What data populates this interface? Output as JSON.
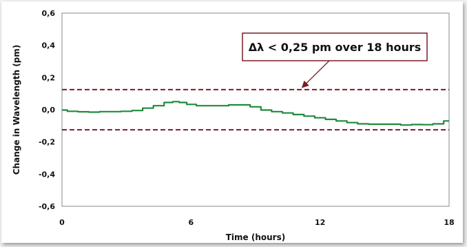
{
  "chart_data": {
    "type": "line",
    "title": "",
    "xlabel": "Time (hours)",
    "ylabel": "Change in Wavelength (pm)",
    "xlim": [
      0,
      18
    ],
    "ylim": [
      -0.6,
      0.6
    ],
    "x_ticks": [
      0,
      6,
      12,
      18
    ],
    "x_tick_labels": [
      "0",
      "6",
      "12",
      "18"
    ],
    "y_ticks": [
      0.6,
      0.4,
      0.2,
      0.0,
      -0.2,
      -0.4,
      -0.6
    ],
    "y_tick_labels": [
      "0,6",
      "0,4",
      "0,2",
      "0,0",
      "-0,2",
      "-0,4",
      "-0,6"
    ],
    "grid": false,
    "series": [
      {
        "color": "#1f8a3c",
        "x": [
          0,
          0.5,
          1,
          1.5,
          2,
          2.5,
          3,
          3.5,
          4,
          4.5,
          5,
          5.3,
          5.6,
          6,
          6.5,
          7,
          7.5,
          8,
          8.5,
          9,
          9.5,
          10,
          10.5,
          11,
          11.5,
          12,
          12.5,
          13,
          13.5,
          14,
          14.5,
          15,
          15.5,
          16,
          16.5,
          17,
          17.5,
          18
        ],
        "y": [
          -0.002,
          -0.01,
          -0.013,
          -0.015,
          -0.012,
          -0.012,
          -0.01,
          -0.005,
          0.01,
          0.025,
          0.045,
          0.05,
          0.045,
          0.033,
          0.025,
          0.025,
          0.025,
          0.03,
          0.03,
          0.018,
          -0.002,
          -0.012,
          -0.02,
          -0.03,
          -0.04,
          -0.05,
          -0.06,
          -0.07,
          -0.08,
          -0.088,
          -0.09,
          -0.09,
          -0.09,
          -0.095,
          -0.092,
          -0.093,
          -0.088,
          -0.07
        ]
      }
    ],
    "reference_lines": [
      {
        "axis": "y",
        "value": 0.125,
        "style": "dashed",
        "color": "#7a1c24"
      },
      {
        "axis": "y",
        "value": -0.125,
        "style": "dashed",
        "color": "#7a1c24"
      }
    ],
    "annotation": {
      "text": "Δλ < 0,25 pm over 18 hours",
      "arrow_to": {
        "x": 11.2,
        "y": 0.125
      },
      "box_border_color": "#7a1c24"
    }
  }
}
